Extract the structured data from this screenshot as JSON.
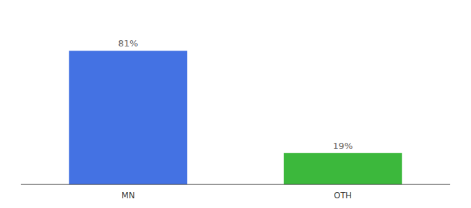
{
  "chart_data": {
    "type": "bar",
    "categories": [
      "MN",
      "OTH"
    ],
    "values": [
      81,
      19
    ],
    "value_labels": [
      "81%",
      "19%"
    ],
    "colors": [
      "#4472E3",
      "#3CB83C"
    ],
    "ylim": [
      0,
      100
    ],
    "data_labels": true,
    "tick_labels": "x"
  }
}
